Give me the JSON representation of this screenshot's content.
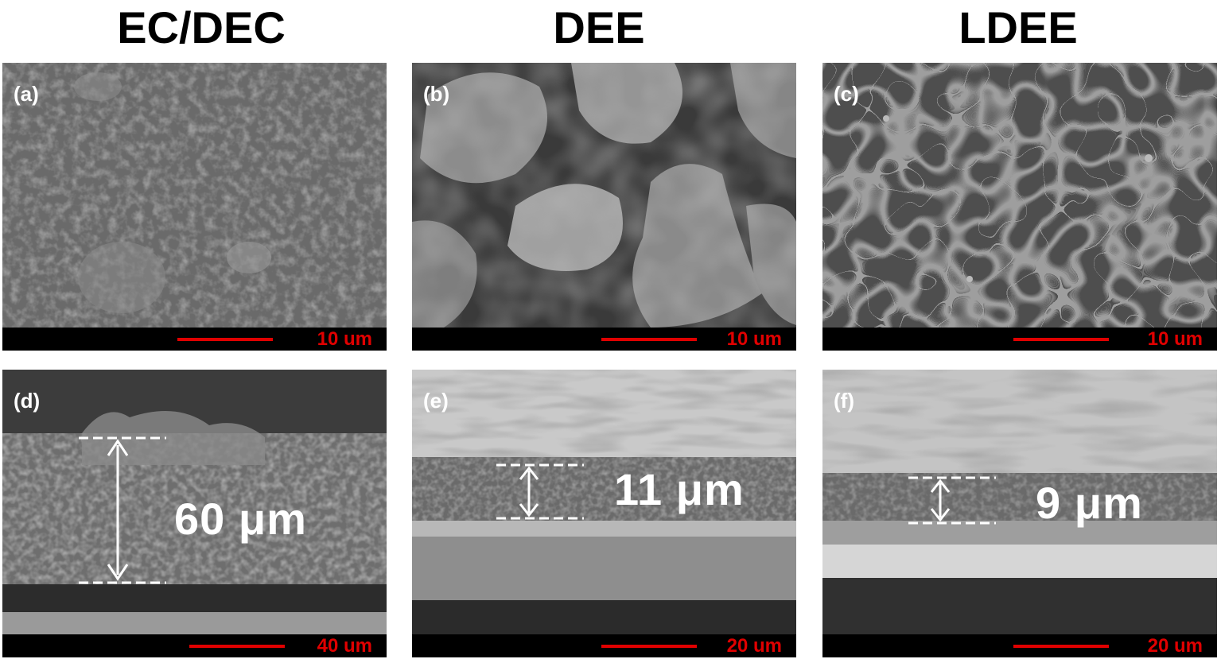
{
  "columns": {
    "c1": "EC/DEC",
    "c2": "DEE",
    "c3": "LDEE"
  },
  "panels": {
    "a": {
      "label": "(a)",
      "scale": "10 um"
    },
    "b": {
      "label": "(b)",
      "scale": "10 um"
    },
    "c": {
      "label": "(c)",
      "scale": "10 um"
    },
    "d": {
      "label": "(d)",
      "scale": "40 um",
      "thickness": "60 μm"
    },
    "e": {
      "label": "(e)",
      "scale": "20 um",
      "thickness": "11 μm"
    },
    "f": {
      "label": "(f)",
      "scale": "20 um",
      "thickness": "9 μm"
    }
  },
  "colors": {
    "scale_bar": "#e00000",
    "label": "#ffffff"
  }
}
